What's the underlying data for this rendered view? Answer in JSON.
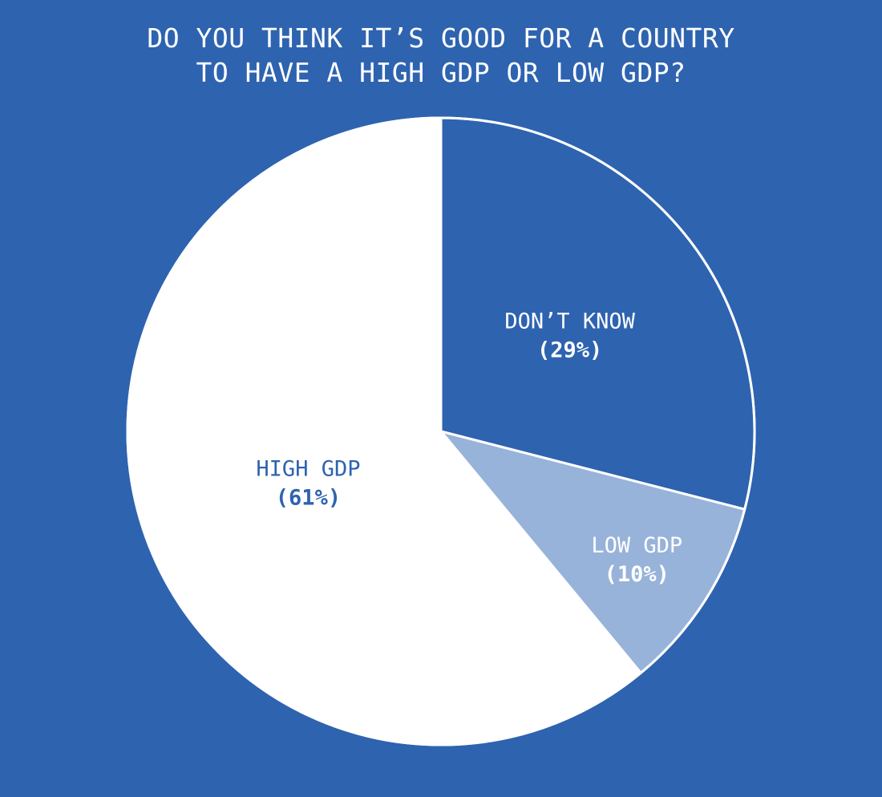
{
  "chart_data": {
    "type": "pie",
    "title_lines": [
      "DO YOU THINK IT’S GOOD FOR A COUNTRY",
      "TO HAVE A HIGH GDP OR LOW GDP?"
    ],
    "slices": [
      {
        "label": "DON’T KNOW",
        "value": 29,
        "display": "(29%)",
        "color": "#2e63b0",
        "text_color": "#ffffff"
      },
      {
        "label": "LOW GDP",
        "value": 10,
        "display": "(10%)",
        "color": "#98b3da",
        "text_color": "#ffffff"
      },
      {
        "label": "HIGH GDP",
        "value": 61,
        "display": "(61%)",
        "color": "#ffffff",
        "text_color": "#2e63b0"
      }
    ],
    "start_angle": "12 o'clock",
    "direction": "clockwise",
    "legend": "none"
  },
  "colors": {
    "background": "#2e63b0",
    "outline": "#ffffff"
  }
}
